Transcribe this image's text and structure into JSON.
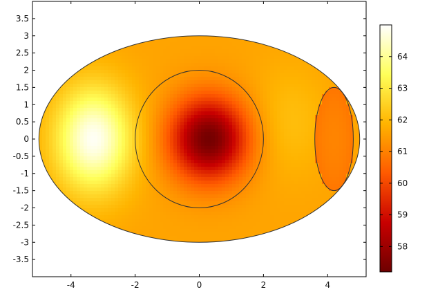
{
  "chart_data": {
    "type": "heatmap",
    "title": "",
    "xlabel": "",
    "ylabel": "",
    "xlim": [
      -5.2,
      5.2
    ],
    "ylim": [
      -4.0,
      4.0
    ],
    "x_ticks": [
      -4,
      -2,
      0,
      2,
      4
    ],
    "x_tick_labels": [
      "-4",
      "-2",
      "0",
      "2",
      "4"
    ],
    "y_ticks": [
      3.5,
      3,
      2.5,
      2,
      1.5,
      1,
      0.5,
      0,
      -0.5,
      -1,
      -1.5,
      -2,
      -2.5,
      -3,
      -3.5
    ],
    "y_tick_labels": [
      "3.5",
      "3",
      "2.5",
      "2",
      "1.5",
      "1",
      "0.5",
      "0",
      "-0.5",
      "-1",
      "-1.5",
      "-2",
      "-2.5",
      "-3",
      "-3.5"
    ],
    "colorbar": {
      "range": [
        57.2,
        65.0
      ],
      "ticks": [
        64,
        63,
        62,
        61,
        60,
        59,
        58
      ],
      "tick_labels": [
        "64",
        "63",
        "62",
        "61",
        "60",
        "59",
        "58"
      ],
      "colormap": "heat",
      "colors": [
        "#6e0000",
        "#c80000",
        "#ff5a00",
        "#ffb400",
        "#ffff5a",
        "#ffffff"
      ]
    },
    "domain": {
      "outer_ellipse": {
        "center": [
          0,
          0
        ],
        "semi_axes": [
          5.0,
          3.0
        ]
      },
      "inner_circle": {
        "center": [
          0,
          0
        ],
        "radius": 2.0
      },
      "right_subdomain": {
        "center": [
          4.2,
          0
        ],
        "semi_axes": [
          0.6,
          1.5
        ]
      }
    },
    "field": {
      "cold_spot": {
        "center": [
          0.3,
          0
        ],
        "value": 57.3
      },
      "hot_spot": {
        "center": [
          -3.3,
          0
        ],
        "value": 64.9
      },
      "right_subdomain_value": 60.8,
      "rim_value": 61.6
    },
    "grid": false
  }
}
